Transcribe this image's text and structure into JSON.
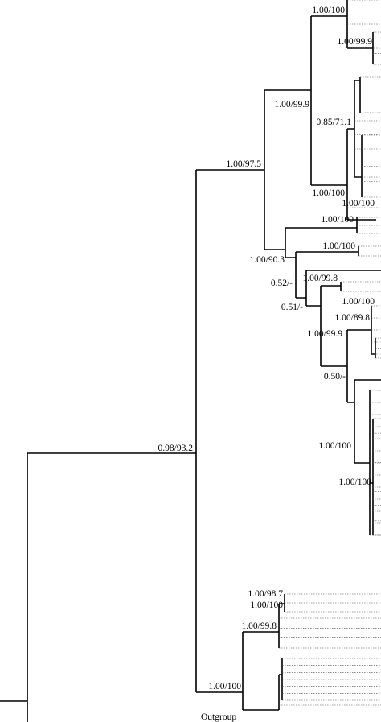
{
  "tree": {
    "support_labels": [
      "1.00/100",
      "1.00/99.9",
      "1.00/99.9",
      "0.85/71.1",
      "1.00/97.5",
      "1.00/100",
      "1.00/100",
      "1.00/100",
      "1.00/90.3",
      "0.52/-",
      "1.00/100",
      "0.51/-",
      "1.00/99.8",
      "1.00/100",
      "1.00/89.8",
      "1.00/99.9",
      "0.50/-",
      "1.00/100",
      "1.00/100",
      "0.98/93.2",
      "1.00/98.7",
      "1.00/100",
      "1.00/99.8",
      "1.00/100"
    ],
    "outgroup_label": "Outgroup"
  }
}
